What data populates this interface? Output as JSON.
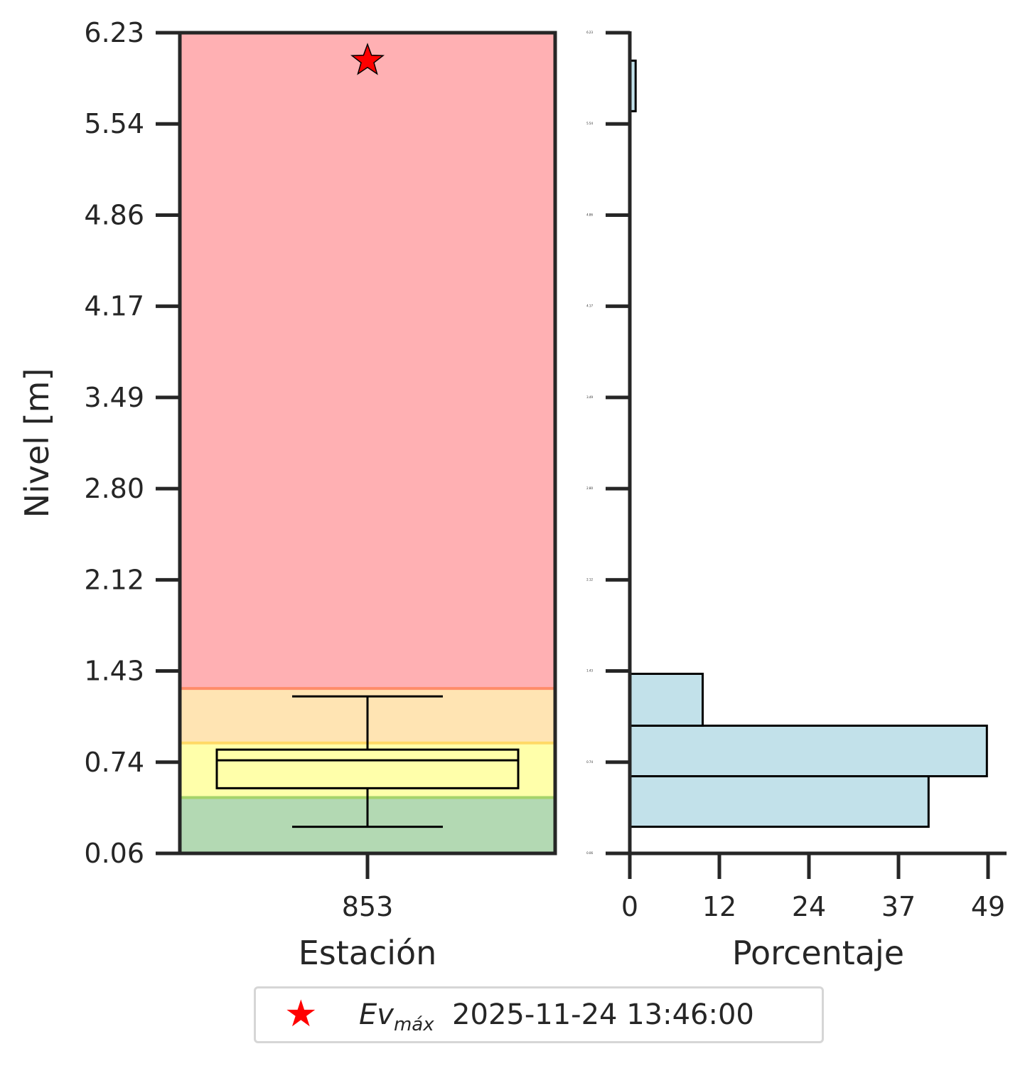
{
  "chart_data": [
    {
      "type": "box",
      "ylabel": "Nivel [m]",
      "xlabel": "Estación",
      "categories": [
        "853"
      ],
      "ylim": [
        0.06,
        6.23
      ],
      "yticks": [
        "0.06",
        "0.74",
        "1.43",
        "2.12",
        "2.80",
        "3.49",
        "4.17",
        "4.86",
        "5.54",
        "6.23"
      ],
      "bands": [
        {
          "from": 0.06,
          "to": 0.48,
          "color": "#b3d9b3",
          "edge": "#a6d36a"
        },
        {
          "from": 0.48,
          "to": 0.89,
          "color": "#ffffaa",
          "edge": "#ffd966"
        },
        {
          "from": 0.89,
          "to": 1.3,
          "color": "#ffe4b3",
          "edge": "#ff8c69"
        },
        {
          "from": 1.3,
          "to": 6.23,
          "color": "#ffb0b3"
        }
      ],
      "box": {
        "whisker_low": 0.26,
        "q1": 0.55,
        "median": 0.76,
        "q3": 0.84,
        "whisker_high": 1.24
      },
      "max_event": {
        "label_main": "Ev",
        "label_sub": "máx",
        "datetime": "2025-11-24 13:46:00",
        "value": 6.02,
        "color": "#ff0000"
      },
      "legend": "bottom-center"
    },
    {
      "type": "bar",
      "orientation": "horizontal",
      "xlabel": "Porcentaje",
      "xticks": [
        "0",
        "12",
        "24",
        "37",
        "49"
      ],
      "xlim": [
        0,
        51.7
      ],
      "ylim": [
        0.06,
        6.23
      ],
      "bar_color": "#c2e1ea",
      "bins": [
        {
          "from": 0.26,
          "to": 0.64,
          "value": 41
        },
        {
          "from": 0.64,
          "to": 1.02,
          "value": 49
        },
        {
          "from": 1.02,
          "to": 1.41,
          "value": 10
        },
        {
          "from": 5.64,
          "to": 6.02,
          "value": 0.8
        }
      ]
    }
  ]
}
